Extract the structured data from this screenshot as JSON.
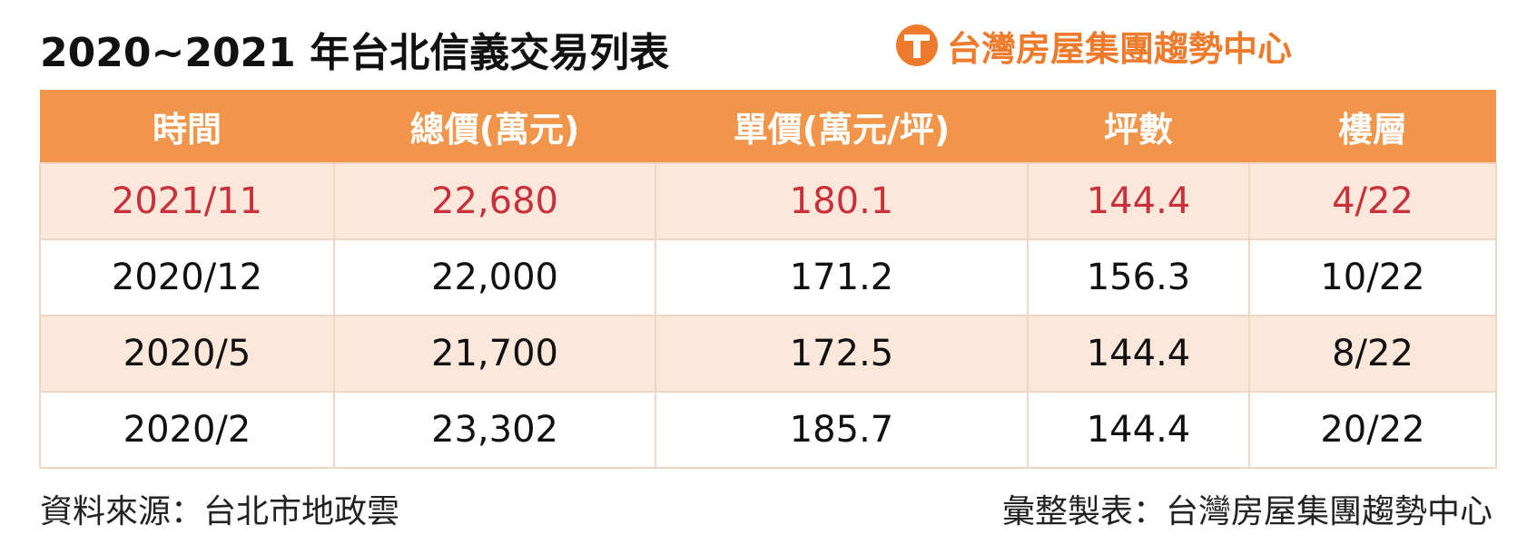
{
  "header": {
    "title": "2020~2021 年台北信義交易列表",
    "brand": "台灣房屋集團趨勢中心"
  },
  "table": {
    "columns": [
      "時間",
      "總價(萬元)",
      "單價(萬元/坪)",
      "坪數",
      "樓層"
    ],
    "rows": [
      [
        "2021/11",
        "22,680",
        "180.1",
        "144.4",
        "4/22"
      ],
      [
        "2020/12",
        "22,000",
        "171.2",
        "156.3",
        "10/22"
      ],
      [
        "2020/5",
        "21,700",
        "172.5",
        "144.4",
        "8/22"
      ],
      [
        "2020/2",
        "23,302",
        "185.7",
        "144.4",
        "20/22"
      ]
    ]
  },
  "footer": {
    "source": "資料來源：台北市地政雲",
    "compiler": "彙整製表：台灣房屋集團趨勢中心"
  }
}
